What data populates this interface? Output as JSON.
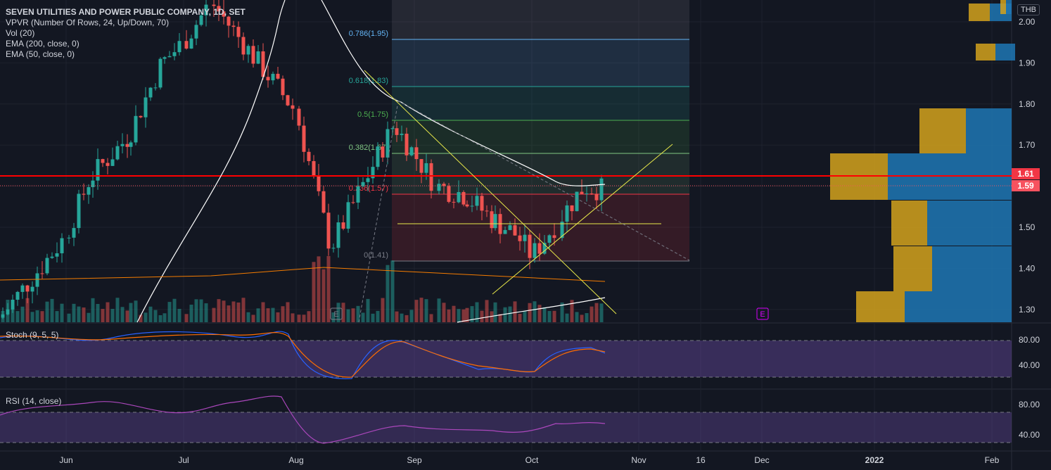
{
  "legend": {
    "title": "SEVEN UTILITIES AND POWER PUBLIC COMPANY, 1D, SET",
    "lines": [
      "VPVR (Number Of Rows, 24, Up/Down, 70)",
      "Vol (20)",
      "EMA (200, close, 0)",
      "EMA (50, close, 0)"
    ]
  },
  "currency": "THB",
  "price_axis": {
    "ticks": [
      "2.00",
      "1.90",
      "1.80",
      "1.70",
      "1.60",
      "1.50",
      "1.40",
      "1.30"
    ],
    "current_line_label": "1.61",
    "last_price_label": "1.59"
  },
  "time_axis": [
    "Jun",
    "Jul",
    "Aug",
    "Sep",
    "Oct",
    "Nov",
    "16",
    "Dec",
    "2022",
    "Feb"
  ],
  "fib_levels": [
    {
      "label": "0.786(1.95)",
      "color": "#64b5f6"
    },
    {
      "label": "0.618(1.83)",
      "color": "#26a69a"
    },
    {
      "label": "0.5(1.75)",
      "color": "#4caf50"
    },
    {
      "label": "0.382(1.67)",
      "color": "#81c784"
    },
    {
      "label": "0.236(1.57)",
      "color": "#f23645"
    },
    {
      "label": "0(1.41)",
      "color": "#787b86"
    }
  ],
  "earnings_markers": [
    "E",
    "E"
  ],
  "stoch": {
    "label": "Stoch (9, 5, 5)",
    "ticks": [
      "80.00",
      "40.00"
    ]
  },
  "rsi": {
    "label": "RSI (14, close)",
    "ticks": [
      "80.00",
      "40.00"
    ]
  },
  "colors": {
    "up": "#26a69a",
    "down": "#ef5350",
    "accent_line": "#f00",
    "fib_box": "#787b86"
  },
  "chart_data": {
    "type": "candlestick",
    "symbol": "SEVEN UTILITIES AND POWER PUBLIC COMPANY",
    "interval": "1D",
    "exchange": "SET",
    "ylim": [
      1.25,
      2.02
    ],
    "horizontal_line": 1.61,
    "last_price": 1.59,
    "price_series": [
      {
        "x": "May 28",
        "close": 1.28
      },
      {
        "x": "Jun 4",
        "close": 1.48
      },
      {
        "x": "Jun 11",
        "close": 1.62
      },
      {
        "x": "Jun 18",
        "close": 1.72
      },
      {
        "x": "Jun 25",
        "close": 1.9
      },
      {
        "x": "Jul 2",
        "close": 1.95
      },
      {
        "x": "Jul 9",
        "close": 2.05
      },
      {
        "x": "Aug 2",
        "close": 1.78
      },
      {
        "x": "Aug 23",
        "close": 1.45
      },
      {
        "x": "Aug 27",
        "close": 1.75
      },
      {
        "x": "Sep 3",
        "close": 1.6
      },
      {
        "x": "Sep 10",
        "close": 1.58
      },
      {
        "x": "Sep 17",
        "close": 1.52
      },
      {
        "x": "Sep 24",
        "close": 1.48
      },
      {
        "x": "Oct 1",
        "close": 1.43
      },
      {
        "x": "Oct 8",
        "close": 1.52
      },
      {
        "x": "Oct 15",
        "close": 1.6
      },
      {
        "x": "Oct 22",
        "close": 1.59
      }
    ],
    "stoch_range": [
      0,
      100
    ],
    "rsi_range": [
      0,
      100
    ]
  }
}
